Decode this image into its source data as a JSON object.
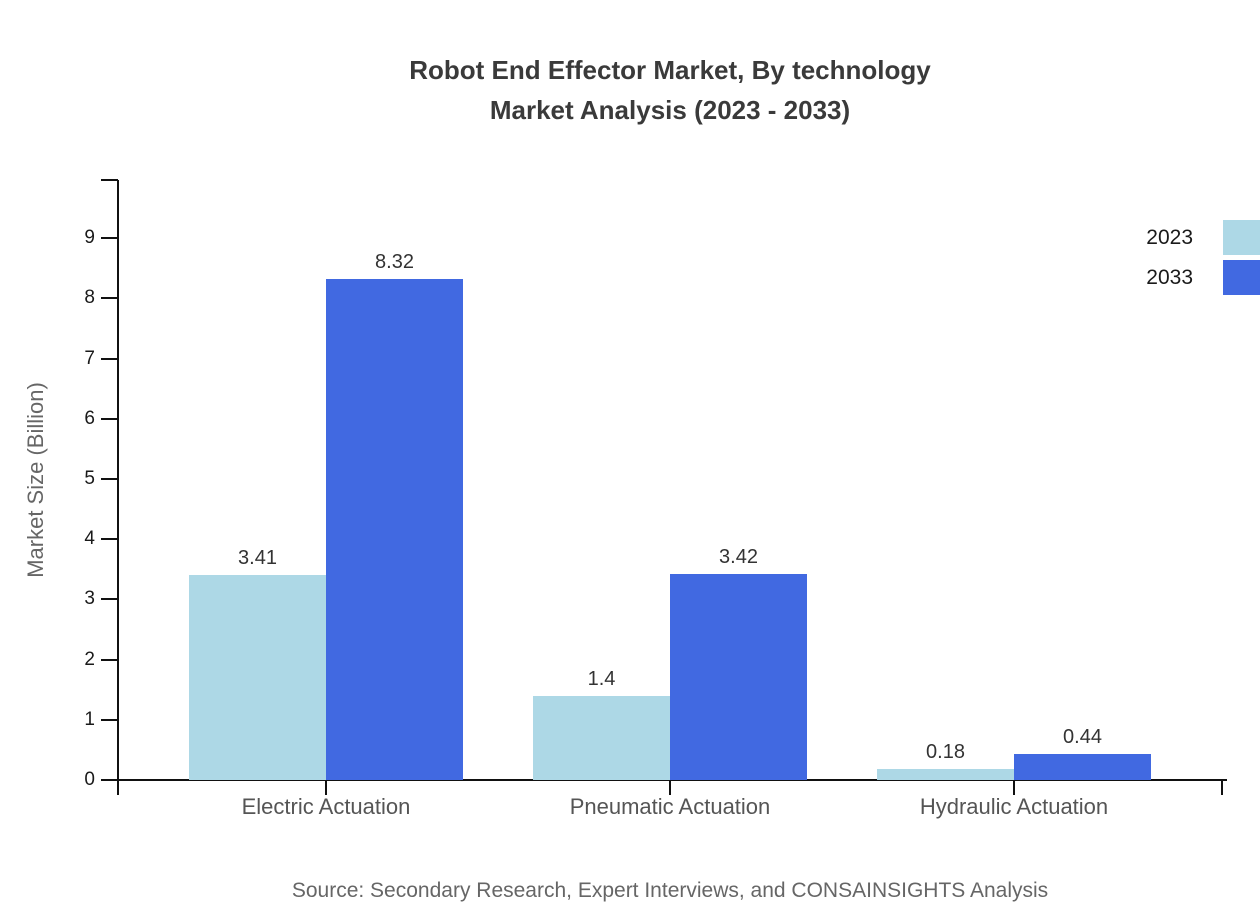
{
  "title": {
    "line1": "Robot End Effector Market, By technology",
    "line2": "Market Analysis (2023 - 2033)"
  },
  "source": "Source: Secondary Research, Expert Interviews, and CONSAINSIGHTS Analysis",
  "colors": {
    "series_2023": "#ADD8E6",
    "series_2033": "#4169E1",
    "axis": "#111111",
    "title_text": "#3a3a3a",
    "muted_text": "#666666"
  },
  "chart_data": {
    "type": "bar",
    "title": "Robot End Effector Market, By technology Market Analysis (2023 - 2033)",
    "categories": [
      "Electric Actuation",
      "Pneumatic Actuation",
      "Hydraulic Actuation"
    ],
    "series": [
      {
        "name": "2023",
        "color": "#ADD8E6",
        "values": [
          3.41,
          1.4,
          0.18
        ]
      },
      {
        "name": "2033",
        "color": "#4169E1",
        "values": [
          8.32,
          3.42,
          0.44
        ]
      }
    ],
    "xlabel": "",
    "ylabel": "Market Size (Billion)",
    "ylim": [
      0,
      10
    ],
    "yticks": [
      0,
      1,
      2,
      3,
      4,
      5,
      6,
      7,
      8,
      9
    ],
    "grid": false,
    "legend_position": "top-right",
    "value_labels": true
  }
}
